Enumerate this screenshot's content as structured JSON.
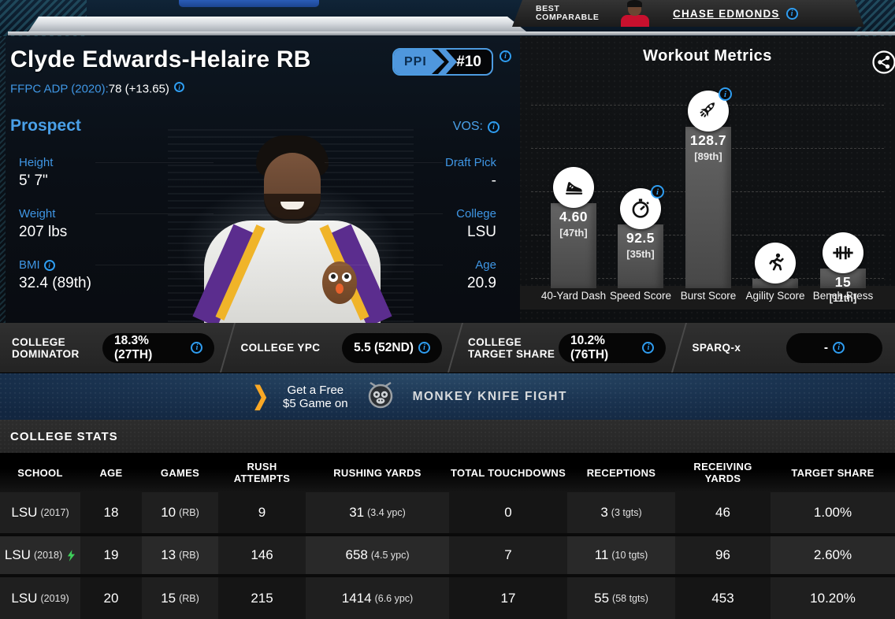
{
  "best_comparable": {
    "label": "BEST COMPARABLE",
    "player": "CHASE EDMONDS"
  },
  "header": {
    "player_name": "Clyde Edwards-Helaire RB",
    "ppi_label": "PPI",
    "ppi_rank": "#10",
    "adp_label": "FFPC ADP (2020):",
    "adp_value": "78 (+13.65)"
  },
  "prospect": {
    "title": "Prospect",
    "vos_label": "VOS:",
    "left": [
      {
        "label": "Height",
        "value": "5' 7\"",
        "info": false
      },
      {
        "label": "Weight",
        "value": "207 lbs",
        "info": false
      },
      {
        "label": "BMI",
        "value": "32.4 (89th)",
        "info": true
      }
    ],
    "right": [
      {
        "label": "Draft Pick",
        "value": "-",
        "info": false
      },
      {
        "label": "College",
        "value": "LSU",
        "info": false
      },
      {
        "label": "Age",
        "value": "20.9",
        "info": false
      }
    ]
  },
  "workout": {
    "title": "Workout Metrics"
  },
  "chart_data": {
    "type": "bar",
    "title": "Workout Metrics",
    "categories": [
      "40-Yard Dash",
      "Speed Score",
      "Burst Score",
      "Agility Score",
      "Bench Press"
    ],
    "series": [
      {
        "name": "Percentile",
        "values": [
          47,
          35,
          89,
          null,
          11
        ]
      }
    ],
    "value_labels": [
      "4.60",
      "92.5",
      "128.7",
      "",
      "15"
    ],
    "percentile_labels": [
      "[47th]",
      "[35th]",
      "[89th]",
      "",
      "[11th]"
    ],
    "icons": [
      "shoe-icon",
      "stopwatch-icon",
      "rocket-icon",
      "runner-icon",
      "barbell-icon"
    ],
    "info_badges": [
      false,
      true,
      true,
      false,
      false
    ],
    "ylim": [
      0,
      100
    ],
    "grid": "dashed-horizontal",
    "legend": "none",
    "bar_color": "#585858"
  },
  "metrics_bar": {
    "sections": [
      {
        "label": "COLLEGE DOMINATOR",
        "value": "18.3% (27TH)"
      },
      {
        "label": "COLLEGE YPC",
        "value": "5.5 (52ND)"
      },
      {
        "label": "COLLEGE TARGET SHARE",
        "value": "10.2% (76TH)"
      },
      {
        "label": "SPARQ-x",
        "value": "-"
      }
    ]
  },
  "promo": {
    "cta_line1": "Get a Free",
    "cta_line2": "$5 Game on",
    "brand": "MONKEY KNIFE FIGHT"
  },
  "college_stats": {
    "title": "COLLEGE STATS",
    "columns": [
      "SCHOOL",
      "AGE",
      "GAMES",
      "RUSH ATTEMPTS",
      "RUSHING YARDS",
      "TOTAL TOUCHDOWNS",
      "RECEPTIONS",
      "RECEIVING YARDS",
      "TARGET SHARE"
    ],
    "rows": [
      {
        "school": "LSU",
        "year": "(2017)",
        "bolt": false,
        "cells": [
          [
            "18"
          ],
          [
            "10",
            "(RB)"
          ],
          [
            "9"
          ],
          [
            "31",
            "(3.4 ypc)"
          ],
          [
            "0"
          ],
          [
            "3",
            "(3 tgts)"
          ],
          [
            "46"
          ],
          [
            "1.00%"
          ]
        ]
      },
      {
        "school": "LSU",
        "year": "(2018)",
        "bolt": true,
        "cells": [
          [
            "19"
          ],
          [
            "13",
            "(RB)"
          ],
          [
            "146"
          ],
          [
            "658",
            "(4.5 ypc)"
          ],
          [
            "7"
          ],
          [
            "11",
            "(10 tgts)"
          ],
          [
            "96"
          ],
          [
            "2.60%"
          ]
        ]
      },
      {
        "school": "LSU",
        "year": "(2019)",
        "bolt": false,
        "cells": [
          [
            "20"
          ],
          [
            "15",
            "(RB)"
          ],
          [
            "215"
          ],
          [
            "1414",
            "(6.6 ypc)"
          ],
          [
            "17"
          ],
          [
            "55",
            "(58 tgts)"
          ],
          [
            "453"
          ],
          [
            "10.20%"
          ]
        ]
      }
    ]
  },
  "colors": {
    "accent_blue": "#3f96e4",
    "info_blue": "#2f9df0",
    "ppi_badge_blue": "#4f97dd",
    "promo_orange": "#f9a825",
    "bolt_green": "#3ecf5a",
    "banner_navy": "#1a3350",
    "bar_gray": "#585858",
    "silver": "#c3c9cf"
  }
}
